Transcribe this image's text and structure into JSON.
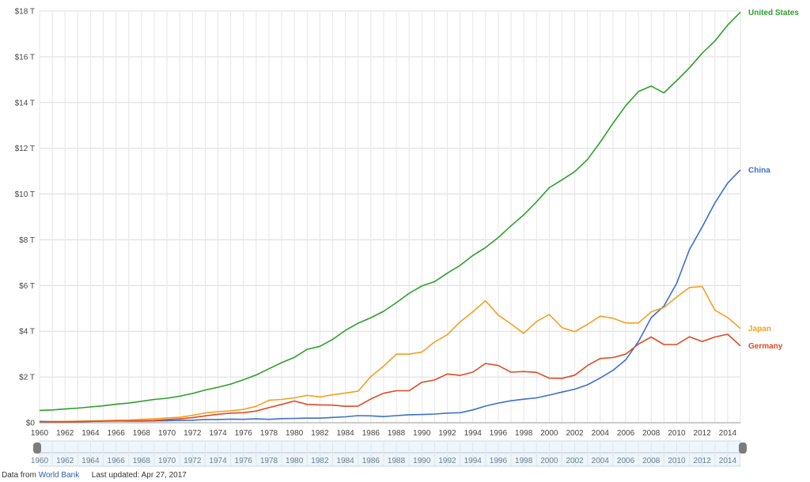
{
  "chart_data": {
    "type": "line",
    "x": [
      1960,
      1961,
      1962,
      1963,
      1964,
      1965,
      1966,
      1967,
      1968,
      1969,
      1970,
      1971,
      1972,
      1973,
      1974,
      1975,
      1976,
      1977,
      1978,
      1979,
      1980,
      1981,
      1982,
      1983,
      1984,
      1985,
      1986,
      1987,
      1988,
      1989,
      1990,
      1991,
      1992,
      1993,
      1994,
      1995,
      1996,
      1997,
      1998,
      1999,
      2000,
      2001,
      2002,
      2003,
      2004,
      2005,
      2006,
      2007,
      2008,
      2009,
      2010,
      2011,
      2012,
      2013,
      2014,
      2015
    ],
    "xlim": [
      1960,
      2015
    ],
    "ylim": [
      0,
      18
    ],
    "y_tick_values": [
      0,
      2,
      4,
      6,
      8,
      10,
      12,
      14,
      16,
      18
    ],
    "y_tick_labels": [
      "$0",
      "$2 T",
      "$4 T",
      "$6 T",
      "$8 T",
      "$10 T",
      "$12 T",
      "$14 T",
      "$16 T",
      "$18 T"
    ],
    "x_tick_values": [
      1960,
      1962,
      1964,
      1966,
      1968,
      1970,
      1972,
      1974,
      1976,
      1978,
      1980,
      1982,
      1984,
      1986,
      1988,
      1990,
      1992,
      1994,
      1996,
      1998,
      2000,
      2002,
      2004,
      2006,
      2008,
      2010,
      2012,
      2014
    ],
    "x_tick_labels": [
      "1960",
      "1962",
      "1964",
      "1966",
      "1968",
      "1970",
      "1972",
      "1974",
      "1976",
      "1978",
      "1980",
      "1982",
      "1984",
      "1986",
      "1988",
      "1990",
      "1992",
      "1994",
      "1996",
      "1998",
      "2000",
      "2002",
      "2004",
      "2006",
      "2008",
      "2010",
      "2012",
      "2014"
    ],
    "grid": true,
    "series": [
      {
        "name": "United States",
        "color": "#2ca02c",
        "values": [
          0.54,
          0.56,
          0.6,
          0.64,
          0.69,
          0.74,
          0.81,
          0.86,
          0.94,
          1.02,
          1.07,
          1.16,
          1.28,
          1.43,
          1.55,
          1.69,
          1.88,
          2.09,
          2.36,
          2.63,
          2.86,
          3.21,
          3.34,
          3.64,
          4.04,
          4.35,
          4.59,
          4.87,
          5.25,
          5.66,
          5.98,
          6.17,
          6.54,
          6.88,
          7.31,
          7.66,
          8.1,
          8.61,
          9.09,
          9.66,
          10.28,
          10.62,
          10.98,
          11.51,
          12.27,
          13.09,
          13.86,
          14.48,
          14.72,
          14.42,
          14.96,
          15.52,
          16.16,
          16.69,
          17.39,
          17.95
        ]
      },
      {
        "name": "China",
        "color": "#3b6fd4",
        "values": [
          0.06,
          0.05,
          0.05,
          0.05,
          0.06,
          0.07,
          0.08,
          0.07,
          0.07,
          0.08,
          0.09,
          0.1,
          0.11,
          0.14,
          0.14,
          0.16,
          0.15,
          0.17,
          0.15,
          0.18,
          0.19,
          0.2,
          0.2,
          0.23,
          0.26,
          0.31,
          0.3,
          0.27,
          0.31,
          0.35,
          0.36,
          0.38,
          0.42,
          0.44,
          0.56,
          0.73,
          0.86,
          0.96,
          1.03,
          1.09,
          1.21,
          1.34,
          1.47,
          1.66,
          1.96,
          2.29,
          2.75,
          3.55,
          4.59,
          5.1,
          6.1,
          7.57,
          8.56,
          9.61,
          10.48,
          11.06
        ]
      },
      {
        "name": "Japan",
        "color": "#f5a020",
        "values": [
          0.04,
          0.05,
          0.06,
          0.07,
          0.08,
          0.09,
          0.11,
          0.12,
          0.15,
          0.17,
          0.21,
          0.24,
          0.32,
          0.43,
          0.48,
          0.52,
          0.58,
          0.72,
          0.98,
          1.02,
          1.09,
          1.2,
          1.13,
          1.22,
          1.3,
          1.38,
          2.02,
          2.47,
          3.0,
          3.0,
          3.09,
          3.53,
          3.85,
          4.41,
          4.85,
          5.33,
          4.71,
          4.32,
          3.91,
          4.43,
          4.73,
          4.16,
          3.98,
          4.3,
          4.66,
          4.57,
          4.36,
          4.36,
          4.85,
          5.04,
          5.5,
          5.91,
          5.96,
          4.92,
          4.6,
          4.12
        ]
      },
      {
        "name": "Germany",
        "color": "#dd4b24",
        "values": [
          0.04,
          0.04,
          0.04,
          0.05,
          0.06,
          0.07,
          0.08,
          0.08,
          0.09,
          0.1,
          0.14,
          0.17,
          0.22,
          0.3,
          0.37,
          0.42,
          0.44,
          0.51,
          0.66,
          0.8,
          0.95,
          0.8,
          0.78,
          0.77,
          0.72,
          0.73,
          1.04,
          1.29,
          1.4,
          1.4,
          1.77,
          1.87,
          2.13,
          2.07,
          2.21,
          2.59,
          2.5,
          2.21,
          2.24,
          2.2,
          1.95,
          1.94,
          2.08,
          2.5,
          2.81,
          2.85,
          3.0,
          3.44,
          3.75,
          3.42,
          3.42,
          3.76,
          3.55,
          3.75,
          3.87,
          3.36
        ]
      }
    ]
  },
  "footer": {
    "source_prefix": "Data from",
    "source_link": "World Bank",
    "updated": "Last updated: Apr 27, 2017"
  }
}
